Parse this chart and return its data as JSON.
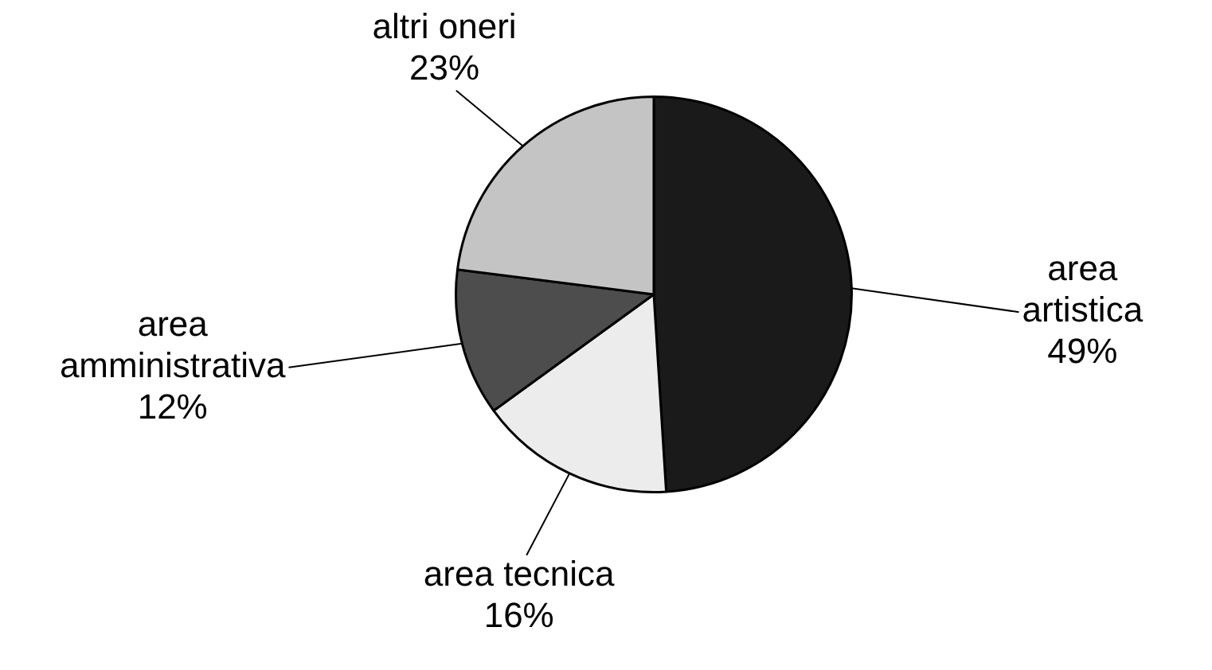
{
  "chart_data": {
    "type": "pie",
    "categories": [
      "area artistica",
      "area tecnica",
      "area amministrativa",
      "altri oneri"
    ],
    "values": [
      49,
      16,
      12,
      23
    ],
    "value_labels": [
      "49%",
      "16%",
      "12%",
      "23%"
    ],
    "colors": [
      "#1a1a1a",
      "#ececec",
      "#4d4d4d",
      "#c4c4c4"
    ],
    "legend": false
  }
}
